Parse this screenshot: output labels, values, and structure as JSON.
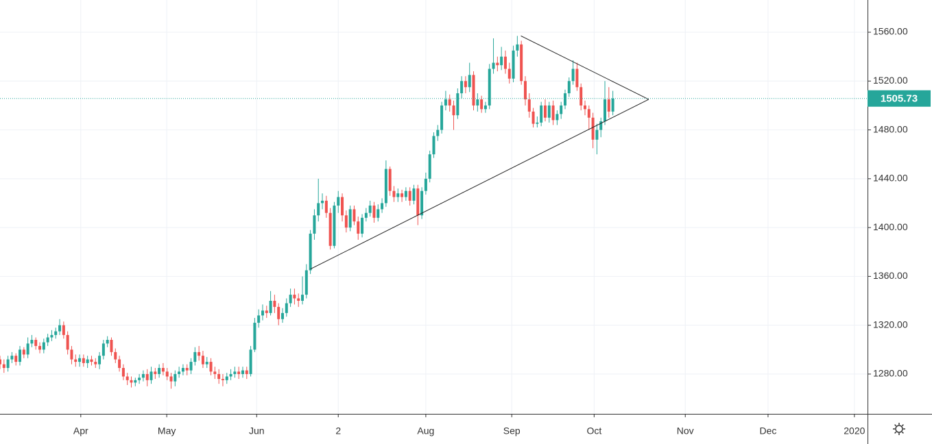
{
  "chart_data": {
    "type": "candlestick",
    "colors": {
      "up": "#26a69a",
      "down": "#ef5350"
    },
    "xlim": [
      0,
      218
    ],
    "ylim": [
      1247.4,
      1586.4
    ],
    "xticks": [
      {
        "value": 20.3,
        "label": "Apr"
      },
      {
        "value": 41.9,
        "label": "May"
      },
      {
        "value": 64.5,
        "label": "Jun"
      },
      {
        "value": 85,
        "label": "2"
      },
      {
        "value": 107,
        "label": "Aug"
      },
      {
        "value": 128.6,
        "label": "Sep"
      },
      {
        "value": 149.3,
        "label": "Oct"
      },
      {
        "value": 172.2,
        "label": "Nov"
      },
      {
        "value": 193,
        "label": "Dec"
      },
      {
        "value": 214.7,
        "label": "2020"
      }
    ],
    "yticks": [
      {
        "value": 1280,
        "label": "1280.00"
      },
      {
        "value": 1320,
        "label": "1320.00"
      },
      {
        "value": 1360,
        "label": "1360.00"
      },
      {
        "value": 1400,
        "label": "1400.00"
      },
      {
        "value": 1440,
        "label": "1440.00"
      },
      {
        "value": 1480,
        "label": "1480.00"
      },
      {
        "value": 1520,
        "label": "1520.00"
      },
      {
        "value": 1560,
        "label": "1560.00"
      }
    ],
    "grid": true,
    "last_price": 1505.73,
    "trendlines": [
      {
        "x": [
          130.9,
          163
        ],
        "y": [
          1557,
          1505
        ]
      },
      {
        "x": [
          78,
          163
        ],
        "y": [
          1366,
          1505
        ]
      }
    ],
    "open": [
      1292,
      1288,
      1285,
      1292,
      1295,
      1290,
      1300,
      1296,
      1305,
      1308,
      1303,
      1300,
      1306,
      1310,
      1312,
      1315,
      1320,
      1312,
      1300,
      1292,
      1290,
      1293,
      1289,
      1292,
      1290,
      1288,
      1295,
      1305,
      1308,
      1298,
      1292,
      1285,
      1278,
      1275,
      1273,
      1275,
      1277,
      1280,
      1275,
      1282,
      1280,
      1285,
      1282,
      1278,
      1274,
      1280,
      1282,
      1285,
      1283,
      1290,
      1298,
      1295,
      1288,
      1290,
      1282,
      1280,
      1276,
      1275,
      1278,
      1280,
      1282,
      1280,
      1283,
      1280,
      1300,
      1322,
      1328,
      1332,
      1330,
      1340,
      1335,
      1325,
      1330,
      1338,
      1345,
      1342,
      1340,
      1345,
      1365,
      1395,
      1410,
      1420,
      1422,
      1412,
      1385,
      1418,
      1425,
      1410,
      1400,
      1415,
      1405,
      1395,
      1408,
      1412,
      1418,
      1408,
      1415,
      1420,
      1448,
      1430,
      1425,
      1428,
      1425,
      1430,
      1422,
      1432,
      1410,
      1430,
      1440,
      1460,
      1475,
      1480,
      1500,
      1505,
      1500,
      1492,
      1510,
      1520,
      1515,
      1525,
      1500,
      1505,
      1497,
      1500,
      1530,
      1535,
      1533,
      1540,
      1530,
      1522,
      1545,
      1550,
      1520,
      1505,
      1495,
      1485,
      1486,
      1500,
      1490,
      1500,
      1488,
      1493,
      1500,
      1510,
      1520,
      1530,
      1515,
      1500,
      1497,
      1490,
      1472,
      1480,
      1487,
      1505,
      1495
    ],
    "high": [
      1295,
      1292,
      1295,
      1298,
      1297,
      1303,
      1302,
      1310,
      1312,
      1310,
      1306,
      1309,
      1313,
      1316,
      1318,
      1325,
      1323,
      1315,
      1303,
      1296,
      1296,
      1296,
      1295,
      1295,
      1293,
      1298,
      1308,
      1311,
      1310,
      1301,
      1295,
      1288,
      1281,
      1278,
      1277,
      1280,
      1283,
      1284,
      1286,
      1285,
      1288,
      1289,
      1285,
      1281,
      1283,
      1286,
      1288,
      1288,
      1293,
      1302,
      1303,
      1299,
      1294,
      1293,
      1286,
      1284,
      1280,
      1281,
      1284,
      1286,
      1286,
      1286,
      1286,
      1303,
      1326,
      1333,
      1337,
      1336,
      1348,
      1345,
      1338,
      1334,
      1342,
      1350,
      1350,
      1346,
      1360,
      1370,
      1398,
      1415,
      1440,
      1428,
      1426,
      1416,
      1421,
      1430,
      1428,
      1414,
      1418,
      1418,
      1409,
      1411,
      1416,
      1422,
      1421,
      1419,
      1424,
      1455,
      1450,
      1434,
      1432,
      1431,
      1433,
      1433,
      1435,
      1435,
      1433,
      1445,
      1463,
      1478,
      1484,
      1503,
      1512,
      1509,
      1504,
      1514,
      1524,
      1524,
      1535,
      1528,
      1510,
      1508,
      1503,
      1534,
      1555,
      1540,
      1548,
      1545,
      1535,
      1549,
      1557,
      1553,
      1524,
      1510,
      1498,
      1491,
      1503,
      1505,
      1503,
      1504,
      1496,
      1503,
      1513,
      1523,
      1537,
      1535,
      1518,
      1504,
      1500,
      1494,
      1485,
      1490,
      1520,
      1515,
      1512
    ],
    "low": [
      1284,
      1281,
      1282,
      1289,
      1287,
      1287,
      1293,
      1293,
      1302,
      1300,
      1297,
      1297,
      1303,
      1307,
      1309,
      1312,
      1309,
      1296,
      1288,
      1286,
      1286,
      1286,
      1285,
      1287,
      1285,
      1284,
      1292,
      1302,
      1295,
      1289,
      1282,
      1275,
      1271,
      1269,
      1270,
      1272,
      1274,
      1270,
      1272,
      1276,
      1277,
      1279,
      1275,
      1268,
      1270,
      1277,
      1279,
      1279,
      1280,
      1287,
      1291,
      1285,
      1285,
      1279,
      1276,
      1272,
      1270,
      1272,
      1275,
      1277,
      1276,
      1277,
      1276,
      1278,
      1298,
      1318,
      1324,
      1326,
      1328,
      1330,
      1320,
      1322,
      1327,
      1335,
      1337,
      1335,
      1337,
      1342,
      1362,
      1390,
      1405,
      1415,
      1408,
      1382,
      1383,
      1412,
      1405,
      1396,
      1397,
      1402,
      1390,
      1392,
      1405,
      1409,
      1404,
      1405,
      1412,
      1417,
      1426,
      1421,
      1421,
      1421,
      1422,
      1418,
      1419,
      1402,
      1407,
      1427,
      1437,
      1457,
      1471,
      1477,
      1496,
      1495,
      1480,
      1489,
      1506,
      1510,
      1511,
      1496,
      1495,
      1494,
      1494,
      1497,
      1526,
      1528,
      1529,
      1526,
      1518,
      1519,
      1540,
      1517,
      1500,
      1490,
      1482,
      1482,
      1483,
      1487,
      1486,
      1484,
      1484,
      1489,
      1497,
      1507,
      1517,
      1512,
      1496,
      1492,
      1480,
      1465,
      1460,
      1474,
      1484,
      1490,
      1492
    ],
    "close": [
      1288,
      1285,
      1292,
      1295,
      1290,
      1300,
      1296,
      1305,
      1308,
      1303,
      1300,
      1306,
      1310,
      1312,
      1315,
      1320,
      1312,
      1300,
      1292,
      1290,
      1293,
      1289,
      1292,
      1290,
      1288,
      1295,
      1305,
      1308,
      1298,
      1292,
      1285,
      1278,
      1275,
      1273,
      1275,
      1277,
      1280,
      1275,
      1282,
      1280,
      1285,
      1282,
      1278,
      1274,
      1280,
      1282,
      1285,
      1283,
      1290,
      1298,
      1295,
      1288,
      1290,
      1282,
      1280,
      1276,
      1275,
      1278,
      1280,
      1282,
      1280,
      1283,
      1280,
      1300,
      1322,
      1328,
      1332,
      1330,
      1340,
      1335,
      1325,
      1330,
      1338,
      1345,
      1342,
      1340,
      1345,
      1365,
      1395,
      1410,
      1420,
      1422,
      1412,
      1385,
      1418,
      1425,
      1410,
      1400,
      1415,
      1405,
      1395,
      1408,
      1412,
      1418,
      1408,
      1415,
      1420,
      1448,
      1430,
      1425,
      1428,
      1425,
      1430,
      1422,
      1432,
      1410,
      1430,
      1440,
      1460,
      1475,
      1480,
      1500,
      1505,
      1500,
      1492,
      1510,
      1520,
      1515,
      1525,
      1500,
      1505,
      1497,
      1500,
      1530,
      1535,
      1533,
      1540,
      1530,
      1522,
      1545,
      1550,
      1520,
      1505,
      1495,
      1485,
      1486,
      1500,
      1490,
      1500,
      1488,
      1493,
      1500,
      1510,
      1520,
      1530,
      1515,
      1500,
      1497,
      1490,
      1472,
      1480,
      1487,
      1505,
      1495,
      1505.73
    ]
  }
}
